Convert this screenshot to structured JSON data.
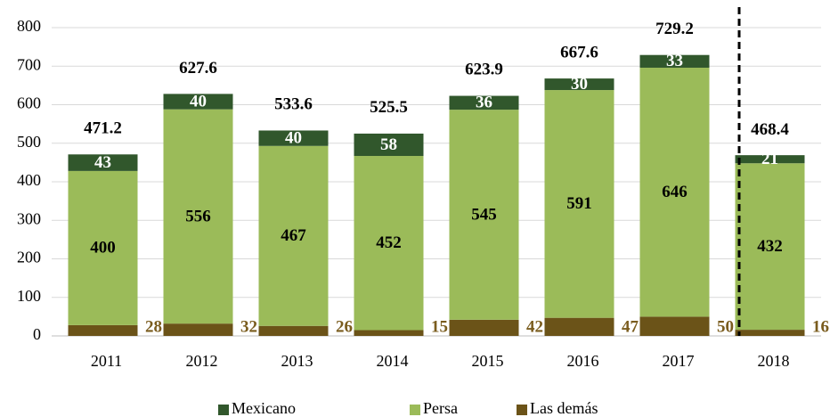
{
  "chart_data": {
    "type": "stacked_bar",
    "categories": [
      "2011",
      "2012",
      "2013",
      "2014",
      "2015",
      "2016",
      "2017",
      "2018"
    ],
    "series": [
      {
        "name": "Mexicano",
        "color": "#31572c",
        "values": [
          43,
          40,
          40,
          58,
          36,
          30,
          33,
          21
        ]
      },
      {
        "name": "Persa",
        "color": "#9bbb59",
        "values": [
          400,
          556,
          467,
          452,
          545,
          591,
          646,
          432
        ]
      },
      {
        "name": "Las demás",
        "color": "#6b5318",
        "values": [
          28,
          32,
          26,
          15,
          42,
          47,
          50,
          16
        ]
      }
    ],
    "totals": [
      471.2,
      627.6,
      533.6,
      525.5,
      623.9,
      667.6,
      729.2,
      468.4
    ],
    "ylim": [
      0,
      800
    ],
    "yticks": [
      0,
      100,
      200,
      300,
      400,
      500,
      600,
      700,
      800
    ],
    "grid": true,
    "legend": "bottom"
  }
}
